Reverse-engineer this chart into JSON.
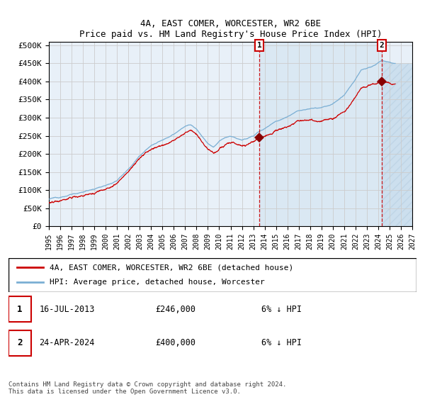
{
  "title": "4A, EAST COMER, WORCESTER, WR2 6BE",
  "subtitle": "Price paid vs. HM Land Registry's House Price Index (HPI)",
  "yticks": [
    0,
    50000,
    100000,
    150000,
    200000,
    250000,
    300000,
    350000,
    400000,
    450000,
    500000
  ],
  "ytick_labels": [
    "£0",
    "£50K",
    "£100K",
    "£150K",
    "£200K",
    "£250K",
    "£300K",
    "£350K",
    "£400K",
    "£450K",
    "£500K"
  ],
  "xmin_year": 1995,
  "xmax_year": 2027,
  "xticks": [
    1995,
    1996,
    1997,
    1998,
    1999,
    2000,
    2001,
    2002,
    2003,
    2004,
    2005,
    2006,
    2007,
    2008,
    2009,
    2010,
    2011,
    2012,
    2013,
    2014,
    2015,
    2016,
    2017,
    2018,
    2019,
    2020,
    2021,
    2022,
    2023,
    2024,
    2025,
    2026,
    2027
  ],
  "sale1_date": 2013.54,
  "sale1_price": 246000,
  "sale2_date": 2024.32,
  "sale2_price": 400000,
  "hpi_color": "#7bafd4",
  "red_color": "#cc0000",
  "marker_color": "#880000",
  "grid_color": "#cccccc",
  "plot_bg_color": "#e8f0f8",
  "legend_entry1": "4A, EAST COMER, WORCESTER, WR2 6BE (detached house)",
  "legend_entry2": "HPI: Average price, detached house, Worcester",
  "ann1_date": "16-JUL-2013",
  "ann1_price": "£246,000",
  "ann1_info": "6% ↓ HPI",
  "ann2_date": "24-APR-2024",
  "ann2_price": "£400,000",
  "ann2_info": "6% ↓ HPI",
  "footnote": "Contains HM Land Registry data © Crown copyright and database right 2024.\nThis data is licensed under the Open Government Licence v3.0."
}
